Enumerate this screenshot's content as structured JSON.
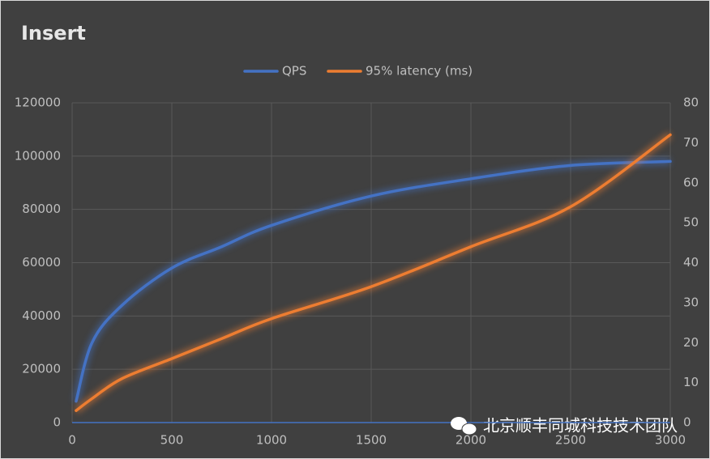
{
  "chart_data": {
    "type": "line",
    "title": "Insert",
    "x": [
      20,
      100,
      250,
      500,
      750,
      1000,
      1500,
      2000,
      2500,
      3000
    ],
    "series": [
      {
        "name": "QPS",
        "color": "#4472c4",
        "values": [
          8000,
          30000,
          44000,
          58000,
          66000,
          74000,
          85000,
          91500,
          96500,
          98000
        ]
      },
      {
        "name": "95% latency (ms)",
        "color": "#ed7d31",
        "axis": "y2",
        "values": [
          3,
          6,
          11,
          16,
          21,
          26,
          34,
          44,
          54,
          72
        ]
      }
    ],
    "xlim": [
      0,
      3000
    ],
    "xticks": [
      0,
      500,
      1000,
      1500,
      2000,
      2500,
      3000
    ],
    "ylim": [
      0,
      120000
    ],
    "yticks": [
      0,
      20000,
      40000,
      60000,
      80000,
      100000,
      120000
    ],
    "y2lim": [
      0,
      80
    ],
    "y2ticks": [
      0,
      10,
      20,
      30,
      40,
      50,
      60,
      70,
      80
    ],
    "grid": true,
    "legend": "top",
    "watermark": "北京顺丰同城科技技术团队"
  }
}
